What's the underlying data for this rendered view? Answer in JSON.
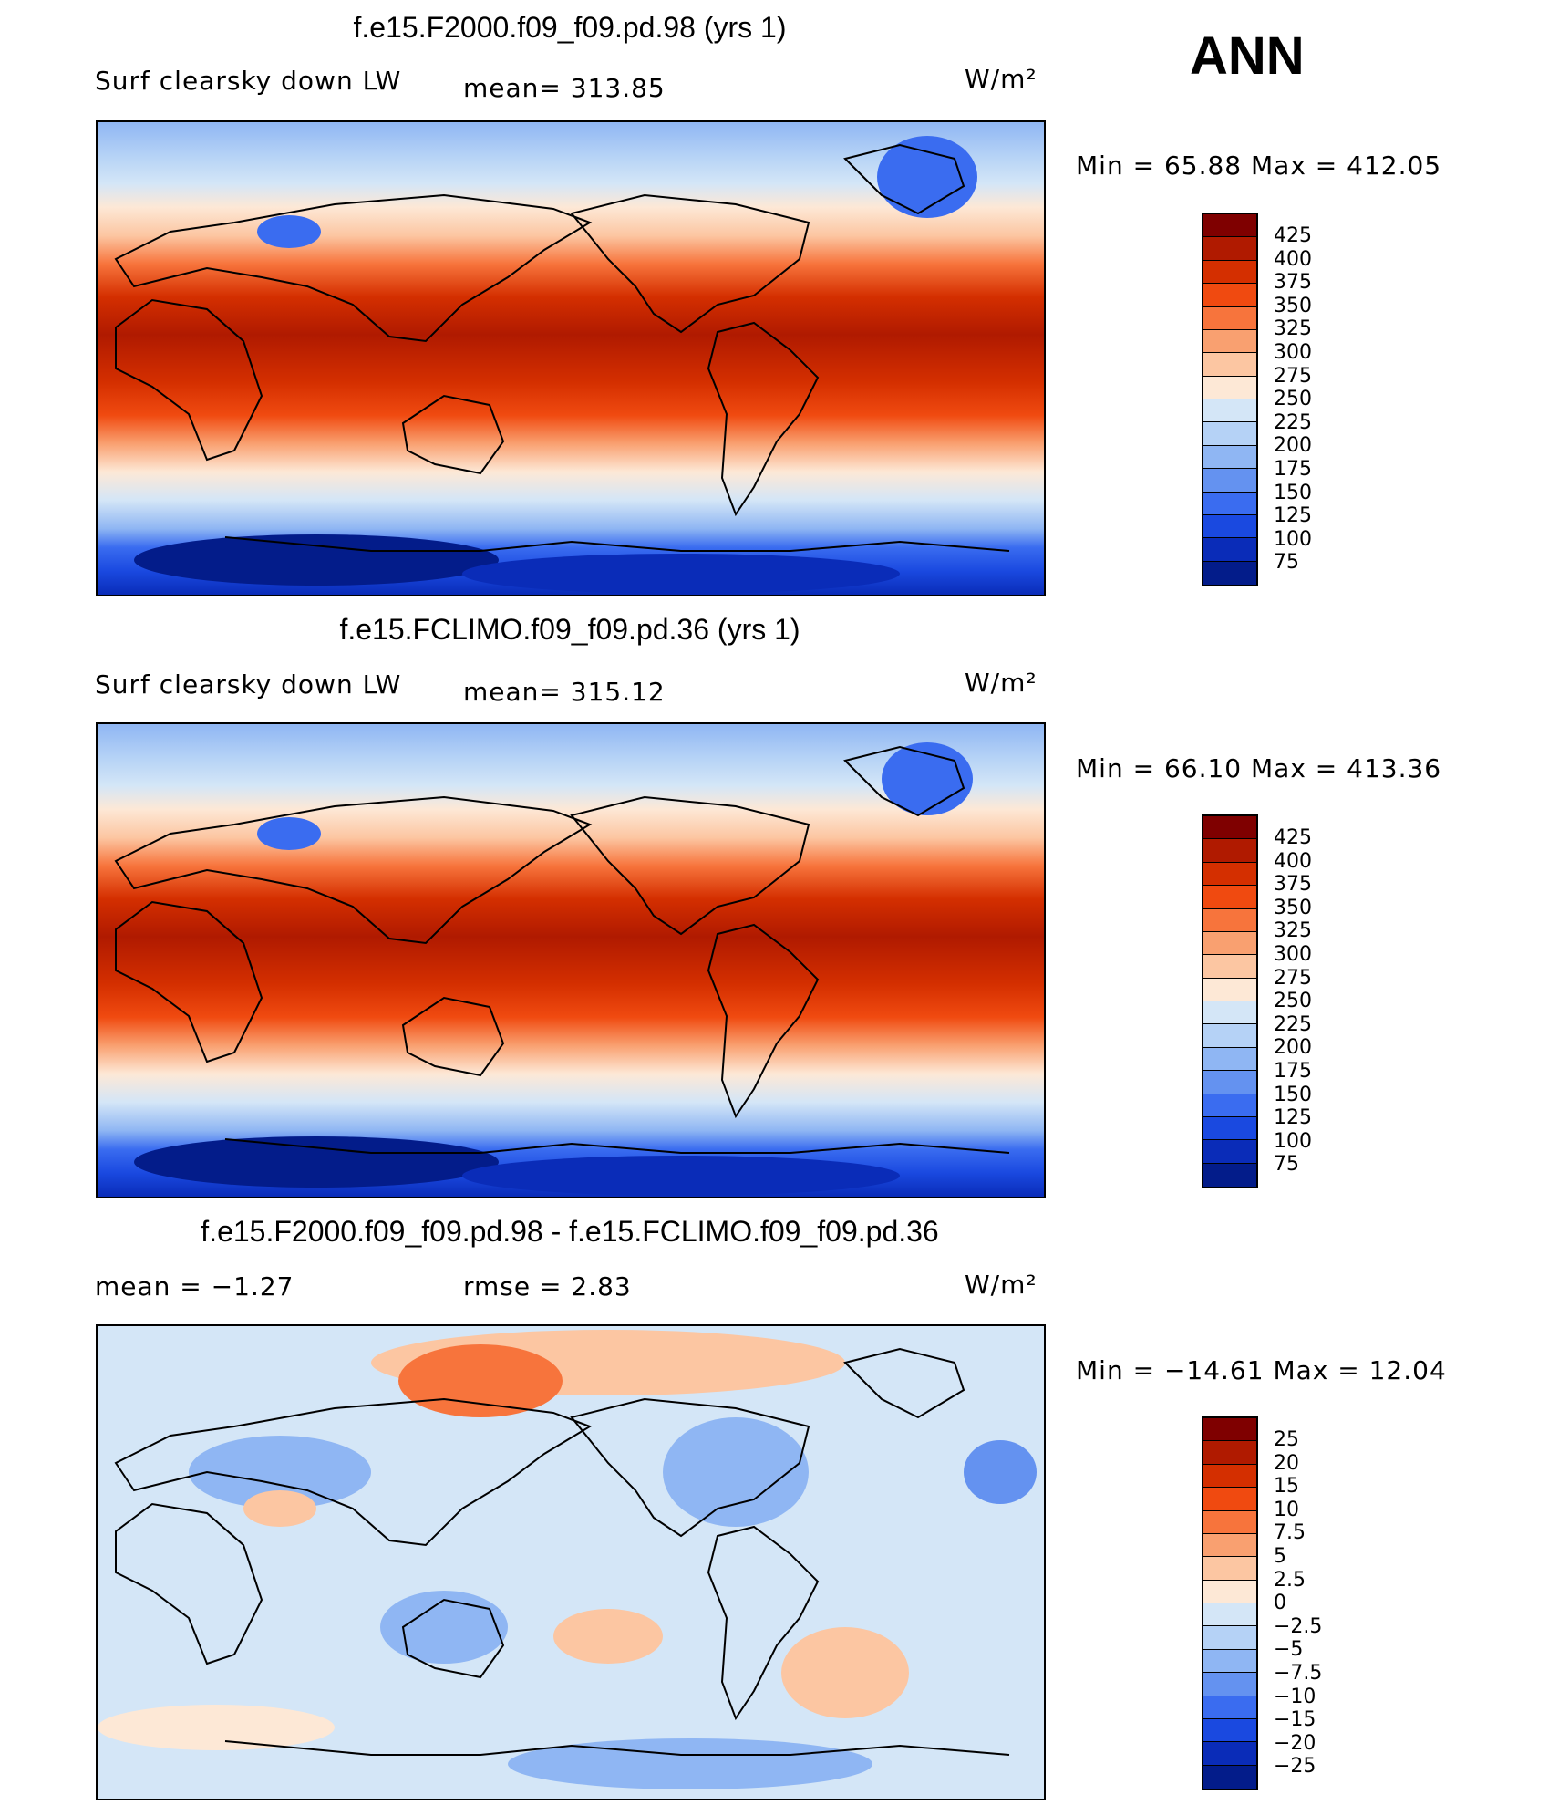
{
  "season": "ANN",
  "panels": [
    {
      "title": "f.e15.F2000.f09_f09.pd.98 (yrs 1)",
      "left_label": "Surf clearsky down LW",
      "center_label": "mean= 313.85",
      "units": "W/m²",
      "minmax": "Min =   65.88 Max = 412.05",
      "colorbar_levels": [
        "425",
        "400",
        "375",
        "350",
        "325",
        "300",
        "275",
        "250",
        "225",
        "200",
        "175",
        "150",
        "125",
        "100",
        "75"
      ]
    },
    {
      "title": "f.e15.FCLIMO.f09_f09.pd.36 (yrs 1)",
      "left_label": "Surf clearsky down LW",
      "center_label": "mean= 315.12",
      "units": "W/m²",
      "minmax": "Min =   66.10 Max = 413.36",
      "colorbar_levels": [
        "425",
        "400",
        "375",
        "350",
        "325",
        "300",
        "275",
        "250",
        "225",
        "200",
        "175",
        "150",
        "125",
        "100",
        "75"
      ]
    },
    {
      "title": "f.e15.F2000.f09_f09.pd.98 - f.e15.FCLIMO.f09_f09.pd.36",
      "left_label": "mean =   −1.27",
      "center_label": "rmse =    2.83",
      "units": "W/m²",
      "minmax": "Min = −14.61 Max =   12.04",
      "colorbar_levels": [
        "25",
        "20",
        "15",
        "10",
        "7.5",
        "5",
        "2.5",
        "0",
        "−2.5",
        "−5",
        "−7.5",
        "−10",
        "−15",
        "−20",
        "−25"
      ]
    }
  ],
  "colors": {
    "abs_scale": [
      "#7f0000",
      "#b01a00",
      "#d42f00",
      "#f04a10",
      "#f7743c",
      "#f9a070",
      "#fcc6a2",
      "#fde8d6",
      "#d4e6f7",
      "#b5d2f6",
      "#8fb6f3",
      "#6492f0",
      "#3a6cf0",
      "#1a49e0",
      "#0a2cb8",
      "#031c8a"
    ],
    "diff_scale": [
      "#7f0000",
      "#b01a00",
      "#d42f00",
      "#f04a10",
      "#f7743c",
      "#f9a070",
      "#fcc6a2",
      "#fde8d6",
      "#d4e6f7",
      "#b5d2f6",
      "#8fb6f3",
      "#6492f0",
      "#3a6cf0",
      "#1a49e0",
      "#0a2cb8",
      "#031c8a"
    ]
  }
}
